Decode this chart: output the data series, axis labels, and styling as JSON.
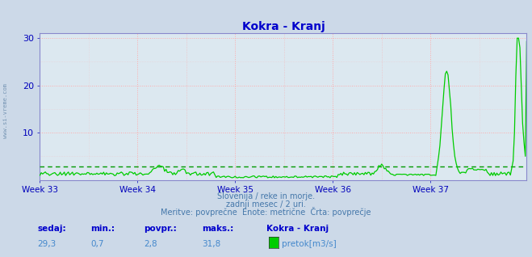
{
  "title": "Kokra - Kranj",
  "title_color": "#0000cc",
  "background_color": "#ccd9e8",
  "plot_bg_color": "#dce8f0",
  "line_color": "#00cc00",
  "avg_line_color": "#009900",
  "avg_line_color2": "#009900",
  "grid_h_color": "#ffaaaa",
  "grid_v_color": "#ffaaaa",
  "spine_color": "#8888cc",
  "x_tick_color": "#0000bb",
  "y_tick_color": "#0000bb",
  "ylim": [
    0,
    31
  ],
  "yticks": [
    10,
    20,
    30
  ],
  "weeks": [
    "Week 33",
    "Week 34",
    "Week 35",
    "Week 36",
    "Week 37"
  ],
  "n_points": 360,
  "avg_value": 2.8,
  "min_value": 0.7,
  "max_value": 31.8,
  "current_value": 29.3,
  "subtitle1": "Slovenija / reke in morje.",
  "subtitle2": "zadnji mesec / 2 uri.",
  "subtitle3": "Meritve: povprečne  Enote: metrične  Črta: povprečje",
  "subtitle_color": "#4477aa",
  "footer_label1": "sedaj:",
  "footer_label2": "min.:",
  "footer_label3": "povpr.:",
  "footer_label4": "maks.:",
  "footer_label5": "Kokra - Kranj",
  "footer_color_labels": "#0000cc",
  "footer_color_values": "#4488cc",
  "legend_label": "pretok[m3/s]",
  "legend_color": "#00cc00",
  "left_text": "www.si-vreme.com",
  "left_text_color": "#6688aa"
}
